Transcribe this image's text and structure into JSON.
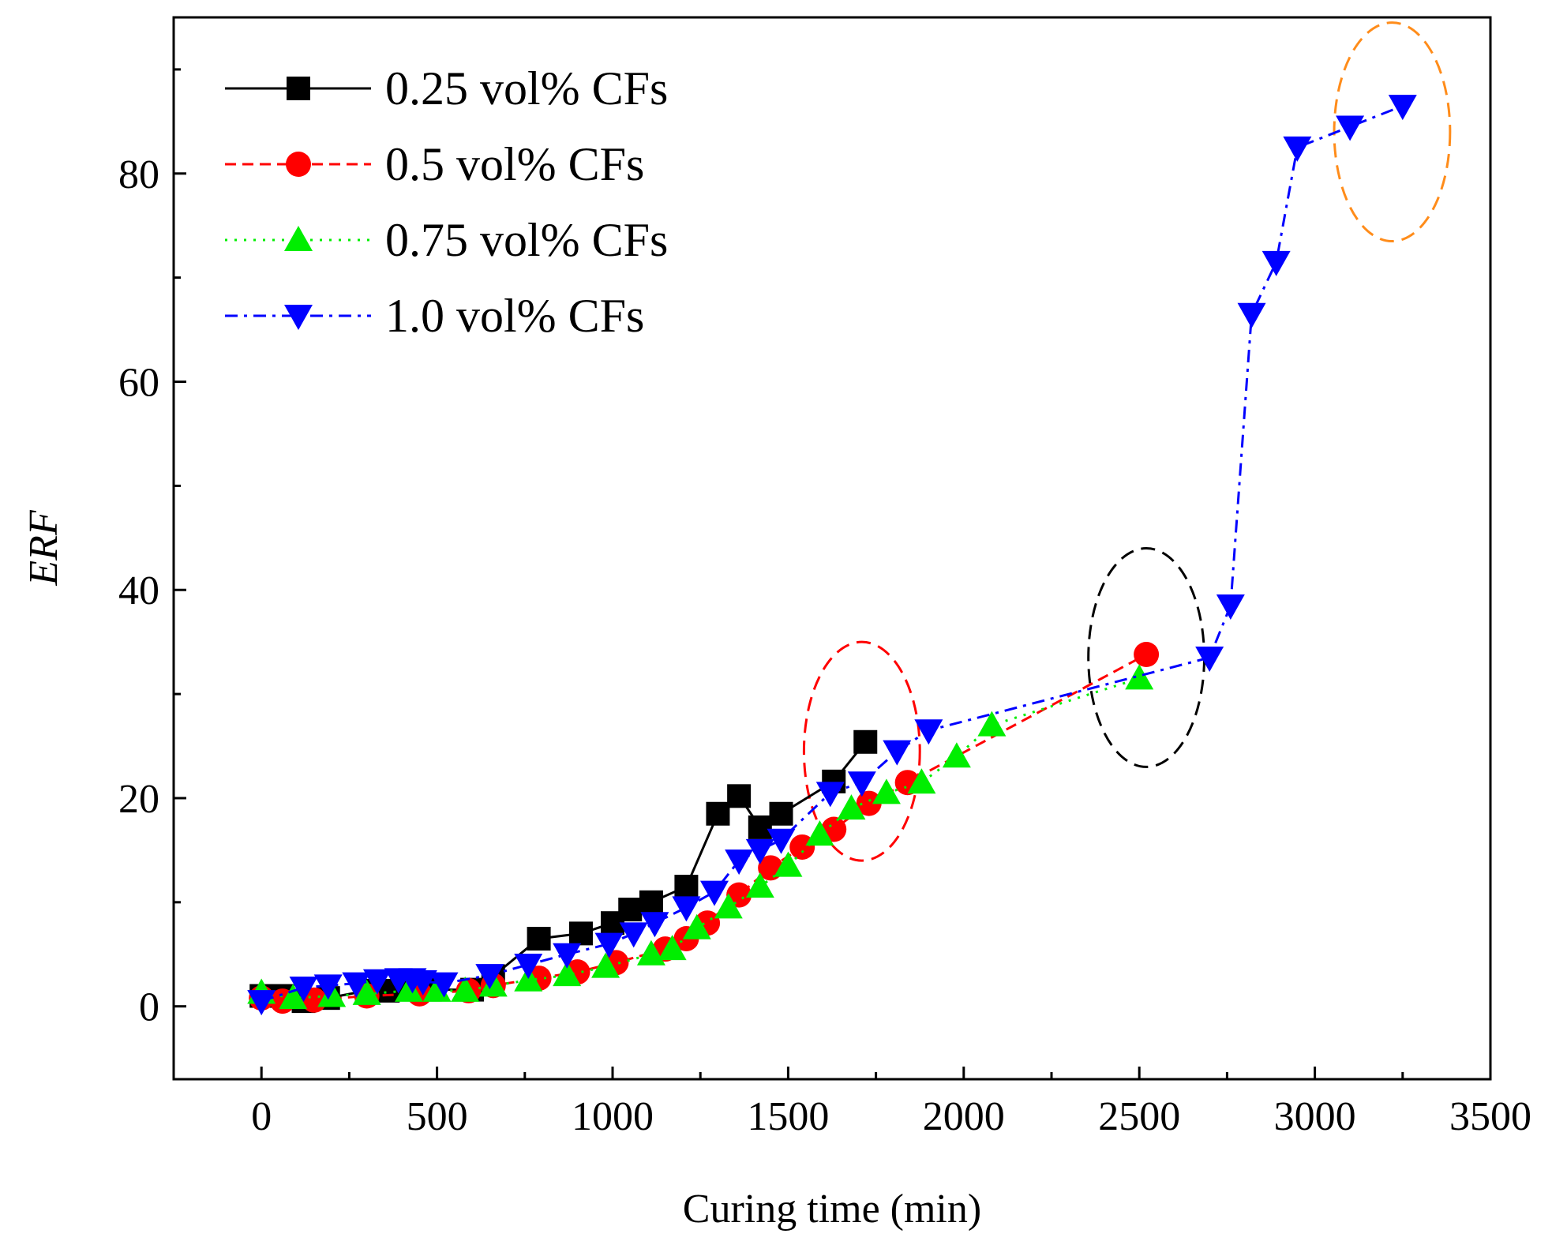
{
  "chart_data": {
    "type": "line",
    "title": "",
    "xlabel": "Curing time (min)",
    "ylabel": "ERF",
    "xlim": [
      -250,
      3500
    ],
    "ylim": [
      -7,
      95
    ],
    "xticks": [
      0,
      500,
      1000,
      1500,
      2000,
      2500,
      3000,
      3500
    ],
    "yticks": [
      0,
      20,
      40,
      60,
      80
    ],
    "grid": false,
    "legend_position": "top-left",
    "series": [
      {
        "name": "0.25 vol% CFs",
        "color": "#000000",
        "marker": "square",
        "line_style": "solid",
        "x": [
          0,
          60,
          120,
          190,
          300,
          360,
          410,
          480,
          600,
          660,
          790,
          910,
          1000,
          1050,
          1110,
          1210,
          1300,
          1360,
          1420,
          1480,
          1630,
          1720
        ],
        "y": [
          1.0,
          1.0,
          0.5,
          0.8,
          1.5,
          1.5,
          2.0,
          1.6,
          1.6,
          2.9,
          6.5,
          7.0,
          8.0,
          9.3,
          10.0,
          11.5,
          18.5,
          20.2,
          17.2,
          18.5,
          21.6,
          25.4
        ]
      },
      {
        "name": "0.5 vol% CFs",
        "color": "#ff0000",
        "marker": "circle",
        "line_style": "dashed",
        "x": [
          0,
          60,
          150,
          300,
          450,
          590,
          660,
          790,
          900,
          1010,
          1150,
          1210,
          1270,
          1360,
          1450,
          1540,
          1630,
          1730,
          1840,
          2520
        ],
        "y": [
          0.8,
          0.5,
          0.6,
          1.0,
          1.2,
          1.5,
          2.0,
          2.7,
          3.3,
          4.2,
          5.5,
          6.5,
          8.0,
          10.7,
          13.3,
          15.3,
          17.0,
          19.5,
          21.5,
          33.8
        ]
      },
      {
        "name": "0.75 vol% CFs",
        "color": "#00ee00",
        "marker": "triangle-up",
        "line_style": "dotted",
        "x": [
          0,
          90,
          200,
          300,
          420,
          500,
          580,
          660,
          760,
          870,
          980,
          1110,
          1170,
          1240,
          1330,
          1420,
          1500,
          1590,
          1680,
          1780,
          1880,
          1980,
          2080,
          2500
        ],
        "y": [
          1.3,
          0.8,
          1.0,
          1.2,
          1.5,
          1.5,
          1.5,
          2.0,
          2.5,
          3.0,
          3.8,
          5.0,
          5.5,
          7.5,
          9.5,
          11.5,
          13.5,
          16.5,
          19.0,
          20.5,
          21.5,
          24.0,
          27.0,
          31.5
        ]
      },
      {
        "name": "1.0 vol% CFs",
        "color": "#0000ff",
        "marker": "triangle-down",
        "line_style": "dashdot",
        "x": [
          0,
          120,
          190,
          270,
          330,
          390,
          430,
          460,
          520,
          650,
          760,
          870,
          990,
          1060,
          1120,
          1210,
          1290,
          1360,
          1420,
          1480,
          1620,
          1710,
          1810,
          1900,
          2700,
          2760,
          2820,
          2890,
          2950,
          3100,
          3250
        ],
        "y": [
          0.5,
          1.8,
          2.0,
          2.2,
          2.5,
          2.6,
          2.6,
          2.4,
          2.2,
          3.0,
          4.0,
          5.0,
          6.0,
          7.0,
          8.0,
          9.5,
          11.0,
          14.0,
          15.0,
          16.0,
          20.5,
          21.5,
          24.5,
          26.5,
          33.5,
          38.5,
          66.5,
          71.5,
          82.5,
          84.5,
          86.5
        ]
      }
    ],
    "annotations": [
      {
        "shape": "dashed-ellipse",
        "color": "#ff0000",
        "cx": 1710,
        "cy": 24.5,
        "rx": 165,
        "ry": 10.5
      },
      {
        "shape": "dashed-ellipse",
        "color": "#000000",
        "cx": 2520,
        "cy": 33.5,
        "rx": 165,
        "ry": 10.5
      },
      {
        "shape": "dashed-ellipse",
        "color": "#ff8c1a",
        "cx": 3220,
        "cy": 84.0,
        "rx": 165,
        "ry": 10.5
      }
    ]
  }
}
